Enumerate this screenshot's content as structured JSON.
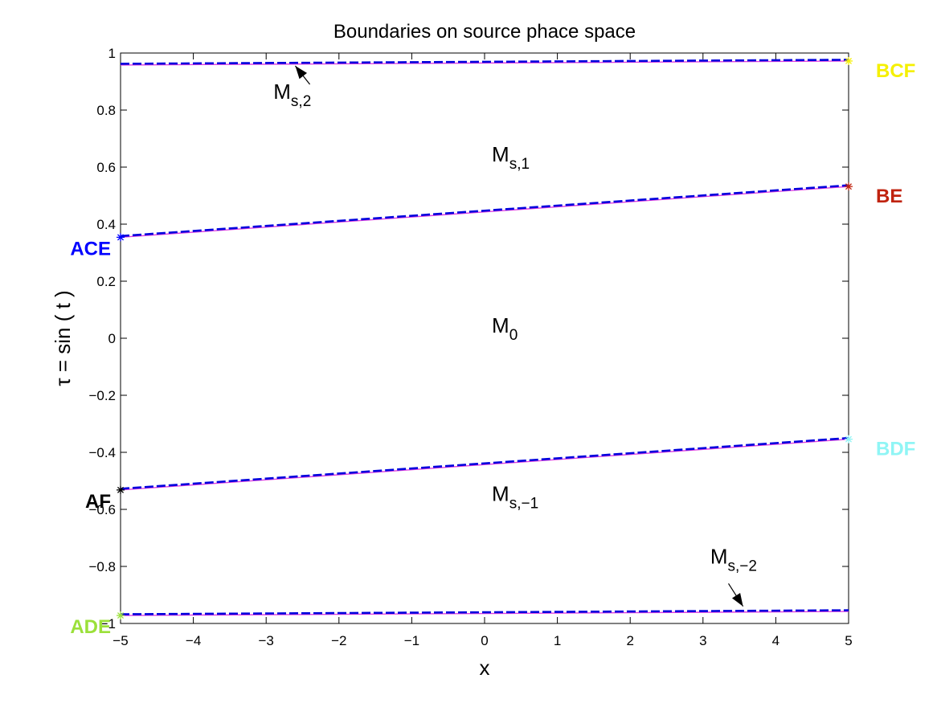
{
  "chart_data": {
    "type": "line",
    "title": "Boundaries on source phace space",
    "xlabel": "x",
    "ylabel": "τ = sin ( t )",
    "xlim": [
      -5,
      5
    ],
    "ylim": [
      -1,
      1
    ],
    "xticks": [
      "−5",
      "−4",
      "−3",
      "−2",
      "−1",
      "0",
      "1",
      "2",
      "3",
      "4",
      "5"
    ],
    "yticks": [
      "−1",
      "−0.8",
      "−0.6",
      "−0.4",
      "−0.2",
      "0",
      "0.2",
      "0.4",
      "0.6",
      "0.8",
      "1"
    ],
    "xtick_values": [
      -5,
      -4,
      -3,
      -2,
      -1,
      0,
      1,
      2,
      3,
      4,
      5
    ],
    "ytick_values": [
      -1,
      -0.8,
      -0.6,
      -0.4,
      -0.2,
      0,
      0.2,
      0.4,
      0.6,
      0.8,
      1
    ],
    "grid": false,
    "boundaries": [
      {
        "x": [
          -5,
          5
        ],
        "y": [
          0.958,
          0.972
        ],
        "start_label": "",
        "end_label": "BCF",
        "start_marker_color": "",
        "end_marker_color": "#f5f000",
        "end_label_color": "#f5f000"
      },
      {
        "x": [
          -5,
          5
        ],
        "y": [
          0.354,
          0.532
        ],
        "start_label": "ACE",
        "end_label": "BE",
        "start_marker_color": "#0000ff",
        "end_marker_color": "#c0230f",
        "start_label_color": "#0000ff",
        "end_label_color": "#c0230f"
      },
      {
        "x": [
          -5,
          5
        ],
        "y": [
          -0.532,
          -0.354
        ],
        "start_label": "AF",
        "end_label": "BDF",
        "start_marker_color": "#000000",
        "end_marker_color": "#8ff5f5",
        "start_label_color": "#000000",
        "end_label_color": "#8ff5f5"
      },
      {
        "x": [
          -5,
          5
        ],
        "y": [
          -0.972,
          -0.958
        ],
        "start_label": "ADE",
        "end_label": "",
        "start_marker_color": "#9be03a",
        "end_marker_color": "",
        "start_label_color": "#9be03a"
      }
    ],
    "regions": [
      {
        "main": "M",
        "sub": "s,2",
        "x": -2.9,
        "y": 0.84
      },
      {
        "main": "M",
        "sub": "s,1",
        "x": 0.1,
        "y": 0.62
      },
      {
        "main": "M",
        "sub": "0",
        "x": 0.1,
        "y": 0.02
      },
      {
        "main": "M",
        "sub": "s,−1",
        "x": 0.1,
        "y": -0.57
      },
      {
        "main": "M",
        "sub": "s,−2",
        "x": 3.1,
        "y": -0.79
      }
    ],
    "arrows": [
      {
        "from": [
          -2.4,
          0.89
        ],
        "to": [
          -2.6,
          0.955
        ]
      },
      {
        "from": [
          3.35,
          -0.86
        ],
        "to": [
          3.55,
          -0.94
        ]
      }
    ],
    "colors": {
      "solid_line": "#e040e0",
      "dashed_line": "#0000dd"
    }
  }
}
